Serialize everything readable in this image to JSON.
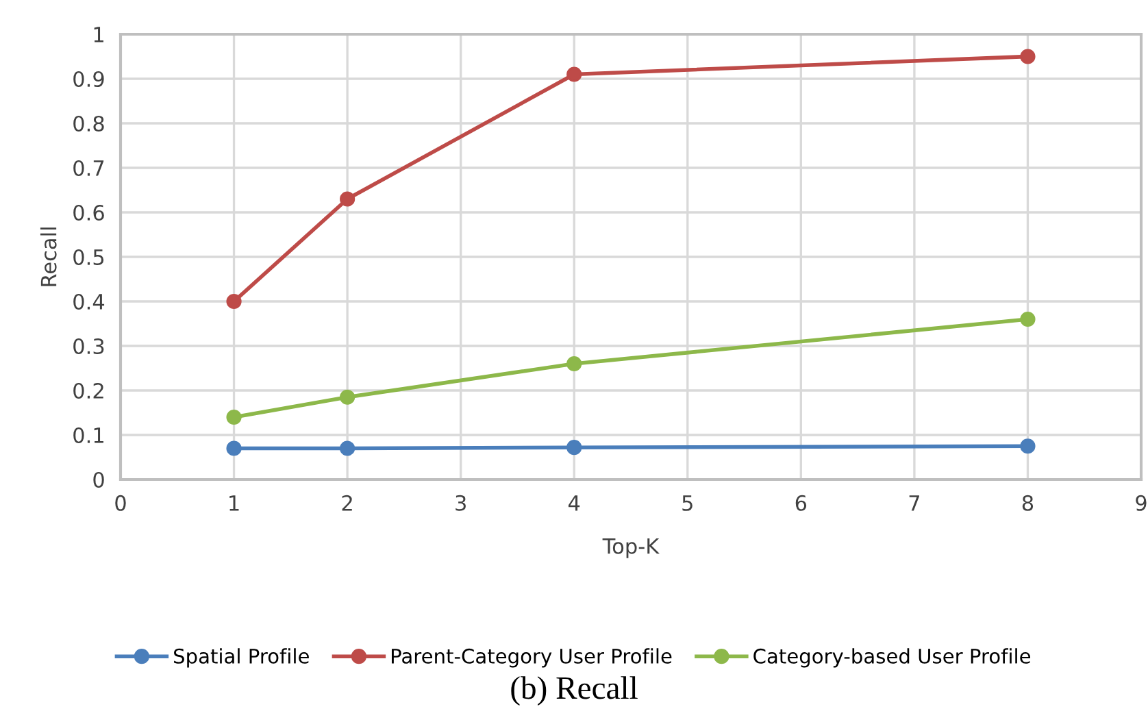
{
  "chart_data": {
    "type": "line",
    "xlabel": "Top-K",
    "ylabel": "Recall",
    "x": [
      1,
      2,
      4,
      8
    ],
    "series": [
      {
        "name": "Spatial Profile",
        "color": "#4a7ebb",
        "values": [
          0.07,
          0.07,
          0.072,
          0.075
        ]
      },
      {
        "name": "Parent-Category User Profile",
        "color": "#be4b48",
        "values": [
          0.4,
          0.63,
          0.91,
          0.95
        ]
      },
      {
        "name": "Category-based User Profile",
        "color": "#8db84a",
        "values": [
          0.14,
          0.185,
          0.26,
          0.36
        ]
      }
    ],
    "xlim": [
      0,
      9
    ],
    "xticks": [
      0,
      1,
      2,
      3,
      4,
      5,
      6,
      7,
      8,
      9
    ],
    "ylim": [
      0,
      1
    ],
    "yticks": [
      0,
      0.1,
      0.2,
      0.3,
      0.4,
      0.5,
      0.6,
      0.7,
      0.8,
      0.9,
      1
    ],
    "grid": true,
    "legend": "bottom",
    "marker": "circle",
    "line_style": "solid",
    "annotations": [
      "(b) Recall"
    ]
  }
}
